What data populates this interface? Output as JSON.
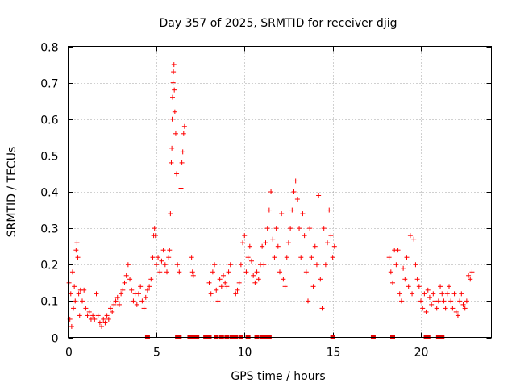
{
  "chart_data": {
    "type": "scatter",
    "title": "Day 357 of 2025, SRMTID for receiver djig",
    "xlabel": "GPS time / hours",
    "ylabel": "SRMTID / TECUs",
    "xlim": [
      0,
      24
    ],
    "ylim": [
      0,
      0.8
    ],
    "x_ticks": [
      "0",
      "5",
      "10",
      "15",
      "20"
    ],
    "y_ticks": [
      "0",
      "0.1",
      "0.2",
      "0.3",
      "0.4",
      "0.5",
      "0.6",
      "0.7",
      "0.8"
    ],
    "grid": true,
    "marker": "plus",
    "color": "#ff0000",
    "series": [
      {
        "name": "SRMTID",
        "points": [
          [
            0.05,
            0.15
          ],
          [
            0.1,
            0.05
          ],
          [
            0.15,
            0.12
          ],
          [
            0.2,
            0.03
          ],
          [
            0.25,
            0.18
          ],
          [
            0.3,
            0.08
          ],
          [
            0.35,
            0.14
          ],
          [
            0.4,
            0.1
          ],
          [
            0.45,
            0.24
          ],
          [
            0.5,
            0.26
          ],
          [
            0.55,
            0.22
          ],
          [
            0.6,
            0.12
          ],
          [
            0.65,
            0.06
          ],
          [
            0.7,
            0.13
          ],
          [
            0.8,
            0.1
          ],
          [
            0.9,
            0.13
          ],
          [
            1.0,
            0.08
          ],
          [
            1.1,
            0.06
          ],
          [
            1.2,
            0.07
          ],
          [
            1.3,
            0.05
          ],
          [
            1.4,
            0.06
          ],
          [
            1.5,
            0.05
          ],
          [
            1.6,
            0.12
          ],
          [
            1.7,
            0.06
          ],
          [
            1.8,
            0.04
          ],
          [
            1.9,
            0.03
          ],
          [
            2.0,
            0.05
          ],
          [
            2.1,
            0.04
          ],
          [
            2.2,
            0.06
          ],
          [
            2.3,
            0.05
          ],
          [
            2.4,
            0.08
          ],
          [
            2.5,
            0.07
          ],
          [
            2.6,
            0.09
          ],
          [
            2.7,
            0.1
          ],
          [
            2.8,
            0.11
          ],
          [
            2.9,
            0.09
          ],
          [
            3.0,
            0.12
          ],
          [
            3.1,
            0.13
          ],
          [
            3.2,
            0.15
          ],
          [
            3.3,
            0.17
          ],
          [
            3.4,
            0.2
          ],
          [
            3.5,
            0.16
          ],
          [
            3.6,
            0.13
          ],
          [
            3.7,
            0.1
          ],
          [
            3.8,
            0.12
          ],
          [
            3.9,
            0.09
          ],
          [
            4.0,
            0.12
          ],
          [
            4.1,
            0.14
          ],
          [
            4.2,
            0.1
          ],
          [
            4.3,
            0.08
          ],
          [
            4.4,
            0.11
          ],
          [
            4.5,
            0.13
          ],
          [
            4.6,
            0.14
          ],
          [
            4.7,
            0.16
          ],
          [
            4.8,
            0.22
          ],
          [
            4.85,
            0.28
          ],
          [
            4.9,
            0.3
          ],
          [
            4.95,
            0.28
          ],
          [
            5.0,
            0.2
          ],
          [
            5.1,
            0.22
          ],
          [
            5.2,
            0.18
          ],
          [
            5.3,
            0.21
          ],
          [
            5.4,
            0.24
          ],
          [
            5.5,
            0.2
          ],
          [
            5.6,
            0.18
          ],
          [
            5.7,
            0.22
          ],
          [
            5.75,
            0.24
          ],
          [
            5.8,
            0.34
          ],
          [
            5.85,
            0.48
          ],
          [
            5.88,
            0.52
          ],
          [
            5.9,
            0.6
          ],
          [
            5.92,
            0.66
          ],
          [
            5.95,
            0.7
          ],
          [
            5.97,
            0.73
          ],
          [
            6.0,
            0.75
          ],
          [
            6.02,
            0.68
          ],
          [
            6.05,
            0.62
          ],
          [
            6.1,
            0.56
          ],
          [
            6.15,
            0.45
          ],
          [
            6.2,
            0.2
          ],
          [
            6.3,
            0.18
          ],
          [
            6.4,
            0.41
          ],
          [
            6.45,
            0.48
          ],
          [
            6.5,
            0.51
          ],
          [
            6.55,
            0.56
          ],
          [
            6.6,
            0.58
          ],
          [
            7.0,
            0.22
          ],
          [
            7.05,
            0.18
          ],
          [
            7.1,
            0.17
          ],
          [
            8.0,
            0.15
          ],
          [
            8.1,
            0.12
          ],
          [
            8.2,
            0.18
          ],
          [
            8.3,
            0.2
          ],
          [
            8.4,
            0.13
          ],
          [
            8.5,
            0.1
          ],
          [
            8.6,
            0.16
          ],
          [
            8.7,
            0.14
          ],
          [
            8.8,
            0.17
          ],
          [
            8.9,
            0.15
          ],
          [
            9.0,
            0.14
          ],
          [
            9.1,
            0.18
          ],
          [
            9.2,
            0.2
          ],
          [
            9.5,
            0.12
          ],
          [
            9.6,
            0.13
          ],
          [
            9.7,
            0.15
          ],
          [
            9.8,
            0.2
          ],
          [
            9.9,
            0.26
          ],
          [
            10.0,
            0.28
          ],
          [
            10.1,
            0.18
          ],
          [
            10.2,
            0.22
          ],
          [
            10.3,
            0.25
          ],
          [
            10.4,
            0.21
          ],
          [
            10.5,
            0.17
          ],
          [
            10.6,
            0.15
          ],
          [
            10.7,
            0.18
          ],
          [
            10.8,
            0.16
          ],
          [
            10.9,
            0.2
          ],
          [
            11.0,
            0.25
          ],
          [
            11.1,
            0.2
          ],
          [
            11.2,
            0.26
          ],
          [
            11.3,
            0.3
          ],
          [
            11.4,
            0.35
          ],
          [
            11.5,
            0.4
          ],
          [
            11.6,
            0.27
          ],
          [
            11.7,
            0.22
          ],
          [
            11.8,
            0.3
          ],
          [
            11.9,
            0.25
          ],
          [
            12.0,
            0.18
          ],
          [
            12.1,
            0.34
          ],
          [
            12.2,
            0.16
          ],
          [
            12.3,
            0.14
          ],
          [
            12.4,
            0.22
          ],
          [
            12.5,
            0.26
          ],
          [
            12.6,
            0.3
          ],
          [
            12.7,
            0.35
          ],
          [
            12.8,
            0.4
          ],
          [
            12.9,
            0.43
          ],
          [
            13.0,
            0.38
          ],
          [
            13.1,
            0.3
          ],
          [
            13.2,
            0.22
          ],
          [
            13.3,
            0.34
          ],
          [
            13.4,
            0.28
          ],
          [
            13.5,
            0.18
          ],
          [
            13.6,
            0.1
          ],
          [
            13.7,
            0.3
          ],
          [
            13.8,
            0.22
          ],
          [
            13.9,
            0.14
          ],
          [
            14.0,
            0.25
          ],
          [
            14.1,
            0.2
          ],
          [
            14.2,
            0.39
          ],
          [
            14.3,
            0.16
          ],
          [
            14.4,
            0.08
          ],
          [
            14.5,
            0.3
          ],
          [
            14.6,
            0.2
          ],
          [
            14.7,
            0.26
          ],
          [
            14.8,
            0.35
          ],
          [
            14.9,
            0.28
          ],
          [
            15.0,
            0.22
          ],
          [
            15.1,
            0.25
          ],
          [
            18.2,
            0.22
          ],
          [
            18.3,
            0.18
          ],
          [
            18.4,
            0.15
          ],
          [
            18.5,
            0.24
          ],
          [
            18.6,
            0.2
          ],
          [
            18.7,
            0.24
          ],
          [
            18.8,
            0.12
          ],
          [
            18.9,
            0.1
          ],
          [
            19.0,
            0.19
          ],
          [
            19.1,
            0.16
          ],
          [
            19.2,
            0.22
          ],
          [
            19.3,
            0.14
          ],
          [
            19.4,
            0.28
          ],
          [
            19.5,
            0.12
          ],
          [
            19.6,
            0.27
          ],
          [
            19.7,
            0.2
          ],
          [
            19.8,
            0.16
          ],
          [
            19.9,
            0.14
          ],
          [
            20.0,
            0.1
          ],
          [
            20.1,
            0.08
          ],
          [
            20.2,
            0.12
          ],
          [
            20.3,
            0.07
          ],
          [
            20.4,
            0.13
          ],
          [
            20.5,
            0.11
          ],
          [
            20.6,
            0.09
          ],
          [
            20.7,
            0.12
          ],
          [
            20.8,
            0.1
          ],
          [
            20.9,
            0.08
          ],
          [
            21.0,
            0.1
          ],
          [
            21.1,
            0.14
          ],
          [
            21.2,
            0.12
          ],
          [
            21.3,
            0.1
          ],
          [
            21.4,
            0.08
          ],
          [
            21.5,
            0.12
          ],
          [
            21.6,
            0.14
          ],
          [
            21.7,
            0.1
          ],
          [
            21.8,
            0.08
          ],
          [
            21.9,
            0.12
          ],
          [
            22.0,
            0.07
          ],
          [
            22.1,
            0.06
          ],
          [
            22.2,
            0.1
          ],
          [
            22.3,
            0.12
          ],
          [
            22.4,
            0.09
          ],
          [
            22.5,
            0.08
          ],
          [
            22.6,
            0.1
          ],
          [
            22.7,
            0.17
          ],
          [
            22.8,
            0.16
          ],
          [
            22.9,
            0.18
          ]
        ],
        "zero_x": [
          4.5,
          6.2,
          6.3,
          6.9,
          7.1,
          7.3,
          7.8,
          8.0,
          8.4,
          8.7,
          9.0,
          9.3,
          9.5,
          9.8,
          10.2,
          10.7,
          11.0,
          11.2,
          11.3,
          11.4,
          15.0,
          17.3,
          18.4,
          20.3,
          20.4,
          21.0,
          21.2
        ]
      }
    ]
  }
}
